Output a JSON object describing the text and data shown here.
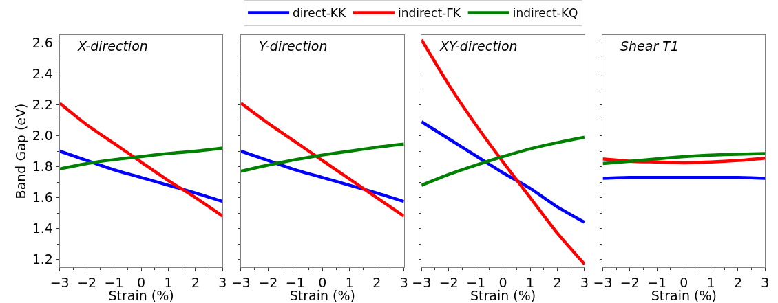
{
  "chart_data": [
    {
      "type": "line",
      "title": "X-direction",
      "xlabel": "Strain (%)",
      "ylabel": "Band Gap (eV)",
      "x": [
        -3,
        -2,
        -1,
        0,
        1,
        2,
        3
      ],
      "series": [
        {
          "name": "direct-KK",
          "color": "#0000ff",
          "values": [
            1.9,
            1.84,
            1.78,
            1.73,
            1.68,
            1.63,
            1.575
          ]
        },
        {
          "name": "indirect-ΓK",
          "color": "#ff0000",
          "values": [
            2.21,
            2.07,
            1.95,
            1.83,
            1.71,
            1.6,
            1.48
          ]
        },
        {
          "name": "indirect-KQ",
          "color": "#008000",
          "values": [
            1.785,
            1.82,
            1.845,
            1.865,
            1.885,
            1.9,
            1.92
          ]
        }
      ],
      "xlim": [
        -3,
        3
      ],
      "xticks": [
        -3,
        {
          "value": -2.5,
          "label": null
        },
        -2,
        {
          "value": -1.5,
          "label": null
        },
        -1,
        {
          "value": -0.5,
          "label": null
        },
        0,
        {
          "value": 0.5,
          "label": null
        },
        1,
        {
          "value": 1.5,
          "label": null
        },
        2,
        {
          "value": 2.5,
          "label": null
        },
        3
      ],
      "ylim": [
        1.15,
        2.65
      ],
      "yticks": [
        1.2,
        {
          "value": 1.3,
          "label": null
        },
        1.4,
        {
          "value": 1.5,
          "label": null
        },
        1.6,
        {
          "value": 1.7,
          "label": null
        },
        1.8,
        {
          "value": 1.9,
          "label": null
        },
        {
          "value": 2.0,
          "label": "2.0"
        },
        {
          "value": 2.1,
          "label": null
        },
        2.2,
        {
          "value": 2.3,
          "label": null
        },
        2.4,
        {
          "value": 2.5,
          "label": null
        },
        2.6
      ],
      "legend": "top",
      "marker": "none",
      "line_style": "solid"
    },
    {
      "type": "line",
      "title": "Y-direction",
      "xlabel": "Strain (%)",
      "x": [
        -3,
        -2,
        -1,
        0,
        1,
        2,
        3
      ],
      "series": [
        {
          "color": "#0000ff",
          "values": [
            1.9,
            1.84,
            1.78,
            1.73,
            1.68,
            1.63,
            1.575
          ]
        },
        {
          "color": "#ff0000",
          "values": [
            2.21,
            2.08,
            1.96,
            1.84,
            1.72,
            1.6,
            1.48
          ]
        },
        {
          "color": "#008000",
          "values": [
            1.77,
            1.81,
            1.845,
            1.875,
            1.9,
            1.925,
            1.945
          ]
        }
      ],
      "xlim": [
        -3,
        3
      ],
      "xticks": [
        -3,
        {
          "value": -2.5,
          "label": null
        },
        -2,
        {
          "value": -1.5,
          "label": null
        },
        -1,
        {
          "value": -0.5,
          "label": null
        },
        0,
        {
          "value": 0.5,
          "label": null
        },
        1,
        {
          "value": 1.5,
          "label": null
        },
        2,
        {
          "value": 2.5,
          "label": null
        },
        3
      ],
      "ylim": [
        1.15,
        2.65
      ],
      "yticks": [
        {
          "value": 1.2,
          "label": null
        },
        {
          "value": 1.3,
          "label": null
        },
        {
          "value": 1.4,
          "label": null
        },
        {
          "value": 1.5,
          "label": null
        },
        {
          "value": 1.6,
          "label": null
        },
        {
          "value": 1.7,
          "label": null
        },
        {
          "value": 1.8,
          "label": null
        },
        {
          "value": 1.9,
          "label": null
        },
        {
          "value": 2.0,
          "label": null
        },
        {
          "value": 2.1,
          "label": null
        },
        {
          "value": 2.2,
          "label": null
        },
        {
          "value": 2.3,
          "label": null
        },
        {
          "value": 2.4,
          "label": null
        },
        {
          "value": 2.5,
          "label": null
        },
        {
          "value": 2.6,
          "label": null
        }
      ],
      "tick_labels": "x",
      "marker": "none",
      "line_style": "solid"
    },
    {
      "type": "line",
      "title": "XY-direction",
      "xlabel": "Strain (%)",
      "x": [
        -3,
        -2,
        -1,
        0,
        1,
        2,
        3
      ],
      "series": [
        {
          "color": "#0000ff",
          "values": [
            2.09,
            1.98,
            1.87,
            1.76,
            1.66,
            1.54,
            1.44
          ]
        },
        {
          "color": "#ff0000",
          "values": [
            2.62,
            2.33,
            2.07,
            1.83,
            1.6,
            1.37,
            1.17
          ]
        },
        {
          "color": "#008000",
          "values": [
            1.68,
            1.75,
            1.81,
            1.865,
            1.915,
            1.955,
            1.99
          ]
        }
      ],
      "xlim": [
        -3,
        3
      ],
      "xticks": [
        -3,
        {
          "value": -2.5,
          "label": null
        },
        -2,
        {
          "value": -1.5,
          "label": null
        },
        -1,
        {
          "value": -0.5,
          "label": null
        },
        0,
        {
          "value": 0.5,
          "label": null
        },
        1,
        {
          "value": 1.5,
          "label": null
        },
        2,
        {
          "value": 2.5,
          "label": null
        },
        3
      ],
      "ylim": [
        1.15,
        2.65
      ],
      "yticks": [
        {
          "value": 1.2,
          "label": null
        },
        {
          "value": 1.3,
          "label": null
        },
        {
          "value": 1.4,
          "label": null
        },
        {
          "value": 1.5,
          "label": null
        },
        {
          "value": 1.6,
          "label": null
        },
        {
          "value": 1.7,
          "label": null
        },
        {
          "value": 1.8,
          "label": null
        },
        {
          "value": 1.9,
          "label": null
        },
        {
          "value": 2.0,
          "label": null
        },
        {
          "value": 2.1,
          "label": null
        },
        {
          "value": 2.2,
          "label": null
        },
        {
          "value": 2.3,
          "label": null
        },
        {
          "value": 2.4,
          "label": null
        },
        {
          "value": 2.5,
          "label": null
        },
        {
          "value": 2.6,
          "label": null
        }
      ],
      "tick_labels": "x",
      "marker": "none",
      "line_style": "solid"
    },
    {
      "type": "line",
      "title": "Shear T1",
      "xlabel": "Strain (%)",
      "x": [
        -3,
        -2,
        -1,
        0,
        1,
        2,
        3
      ],
      "series": [
        {
          "color": "#0000ff",
          "values": [
            1.725,
            1.73,
            1.73,
            1.73,
            1.73,
            1.73,
            1.725
          ]
        },
        {
          "color": "#ff0000",
          "values": [
            1.85,
            1.835,
            1.83,
            1.825,
            1.83,
            1.84,
            1.855
          ]
        },
        {
          "color": "#008000",
          "values": [
            1.82,
            1.835,
            1.85,
            1.865,
            1.875,
            1.88,
            1.885
          ]
        }
      ],
      "xlim": [
        -3,
        3
      ],
      "xticks": [
        -3,
        {
          "value": -2.5,
          "label": null
        },
        -2,
        {
          "value": -1.5,
          "label": null
        },
        -1,
        {
          "value": -0.5,
          "label": null
        },
        0,
        {
          "value": 0.5,
          "label": null
        },
        1,
        {
          "value": 1.5,
          "label": null
        },
        2,
        {
          "value": 2.5,
          "label": null
        },
        3
      ],
      "ylim": [
        1.15,
        2.65
      ],
      "yticks": [
        {
          "value": 1.2,
          "label": null
        },
        {
          "value": 1.3,
          "label": null
        },
        {
          "value": 1.4,
          "label": null
        },
        {
          "value": 1.5,
          "label": null
        },
        {
          "value": 1.6,
          "label": null
        },
        {
          "value": 1.7,
          "label": null
        },
        {
          "value": 1.8,
          "label": null
        },
        {
          "value": 1.9,
          "label": null
        },
        {
          "value": 2.0,
          "label": null
        },
        {
          "value": 2.1,
          "label": null
        },
        {
          "value": 2.2,
          "label": null
        },
        {
          "value": 2.3,
          "label": null
        },
        {
          "value": 2.4,
          "label": null
        },
        {
          "value": 2.5,
          "label": null
        },
        {
          "value": 2.6,
          "label": null
        }
      ],
      "tick_labels": "x",
      "marker": "none",
      "line_style": "solid"
    }
  ]
}
